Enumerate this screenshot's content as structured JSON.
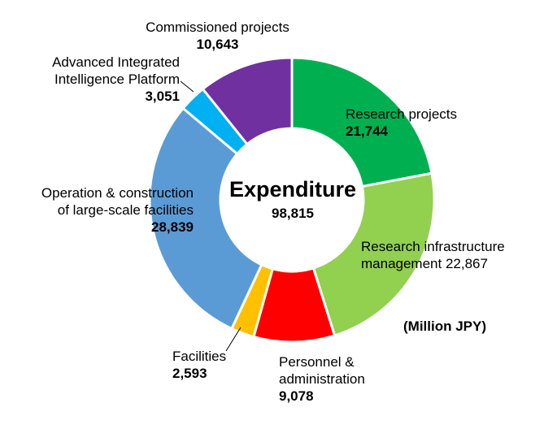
{
  "chart_data": {
    "type": "pie",
    "variant": "donut",
    "center_title": "Expenditure",
    "center_total": "98,815",
    "unit": "(Million JPY)",
    "slices": [
      {
        "label": "Research projects",
        "value": 21744,
        "value_text": "21,744",
        "color": "#00b050"
      },
      {
        "label": "Research infrastructure management",
        "label_lines": [
          "Research infrastructure",
          "management 22,867"
        ],
        "value": 22867,
        "value_text": "22,867",
        "color": "#92d050"
      },
      {
        "label": "Personnel & administration",
        "label_lines": [
          "Personnel &",
          "administration"
        ],
        "value": 9078,
        "value_text": "9,078",
        "color": "#ff0000"
      },
      {
        "label": "Facilities",
        "value": 2593,
        "value_text": "2,593",
        "color": "#ffc000"
      },
      {
        "label": "Operation & construction of large-scale facilities",
        "label_lines": [
          "Operation & construction",
          "of large-scale facilities"
        ],
        "value": 28839,
        "value_text": "28,839",
        "color": "#5b9bd5"
      },
      {
        "label": "Advanced Integrated Intelligence Platform",
        "label_lines": [
          "Advanced Integrated",
          "Intelligence Platform"
        ],
        "value": 3051,
        "value_text": "3,051",
        "color": "#00b0f0"
      },
      {
        "label": "Commissioned projects",
        "value": 10643,
        "value_text": "10,643",
        "color": "#7030a0"
      }
    ]
  }
}
